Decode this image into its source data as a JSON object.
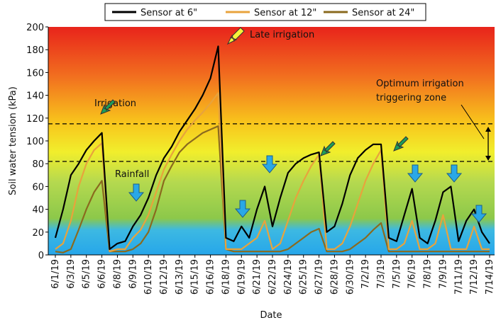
{
  "chart_data": {
    "type": "line",
    "x_label": "Date",
    "y_label": "Soil water tension (kPa)",
    "ylim": [
      0,
      200
    ],
    "yticks": [
      0,
      20,
      40,
      60,
      80,
      100,
      120,
      140,
      160,
      180,
      200
    ],
    "reference_lines": [
      115,
      82
    ],
    "annotations": [
      "Irrigation",
      "Rainfall",
      "Late irrigation",
      "Optimum irrigation",
      "triggering zone"
    ],
    "categories": [
      "6/1/19",
      null,
      "6/3/19",
      null,
      "6/5/19",
      null,
      "6/6/19",
      null,
      "6/8/19",
      null,
      "6/9/19",
      null,
      "6/10/19",
      null,
      "6/12/19",
      null,
      "6/13/19",
      null,
      "6/15/19",
      null,
      "6/16/19",
      null,
      "6/18/19",
      null,
      "6/19/19",
      null,
      "6/21/19",
      null,
      "6/22/19",
      null,
      "6/24/19",
      null,
      "6/25/19",
      null,
      "6/27/19",
      null,
      "6/28/19",
      null,
      "6/30/19",
      null,
      "7/2/19",
      null,
      "7/3/19",
      null,
      "7/5/19",
      null,
      "7/6/19",
      null,
      "7/8/19",
      null,
      "7/9/19",
      null,
      "7/11/19",
      null,
      "7/12/19",
      null,
      "7/14/19"
    ],
    "series": [
      {
        "name": "Sensor at 6\"",
        "color": "#000000",
        "values": [
          15,
          40,
          70,
          80,
          92,
          100,
          107,
          5,
          10,
          12,
          25,
          35,
          50,
          70,
          85,
          95,
          108,
          118,
          128,
          140,
          155,
          183,
          15,
          12,
          25,
          15,
          40,
          60,
          25,
          50,
          72,
          80,
          85,
          88,
          90,
          20,
          25,
          45,
          70,
          85,
          92,
          97,
          97,
          15,
          12,
          35,
          58,
          15,
          10,
          30,
          55,
          60,
          12,
          30,
          40,
          20,
          10
        ]
      },
      {
        "name": "Sensor at 12\"",
        "color": "#e8a33c",
        "values": [
          5,
          10,
          30,
          60,
          80,
          92,
          98,
          3,
          5,
          5,
          15,
          22,
          35,
          55,
          75,
          88,
          100,
          110,
          118,
          125,
          133,
          142,
          5,
          5,
          5,
          10,
          15,
          30,
          5,
          10,
          30,
          50,
          65,
          78,
          88,
          5,
          5,
          10,
          25,
          45,
          65,
          80,
          92,
          5,
          5,
          10,
          30,
          5,
          5,
          10,
          35,
          5,
          5,
          5,
          25,
          5,
          5
        ]
      },
      {
        "name": "Sensor at 24\"",
        "color": "#8a6a1e",
        "values": [
          3,
          2,
          5,
          22,
          40,
          55,
          65,
          3,
          3,
          3,
          5,
          10,
          20,
          40,
          65,
          78,
          90,
          97,
          102,
          107,
          110,
          113,
          5,
          3,
          3,
          3,
          3,
          3,
          3,
          3,
          5,
          10,
          15,
          20,
          23,
          3,
          3,
          3,
          5,
          10,
          15,
          22,
          28,
          3,
          3,
          3,
          3,
          3,
          3,
          3,
          3,
          3,
          3,
          3,
          3,
          3,
          3
        ]
      }
    ]
  }
}
